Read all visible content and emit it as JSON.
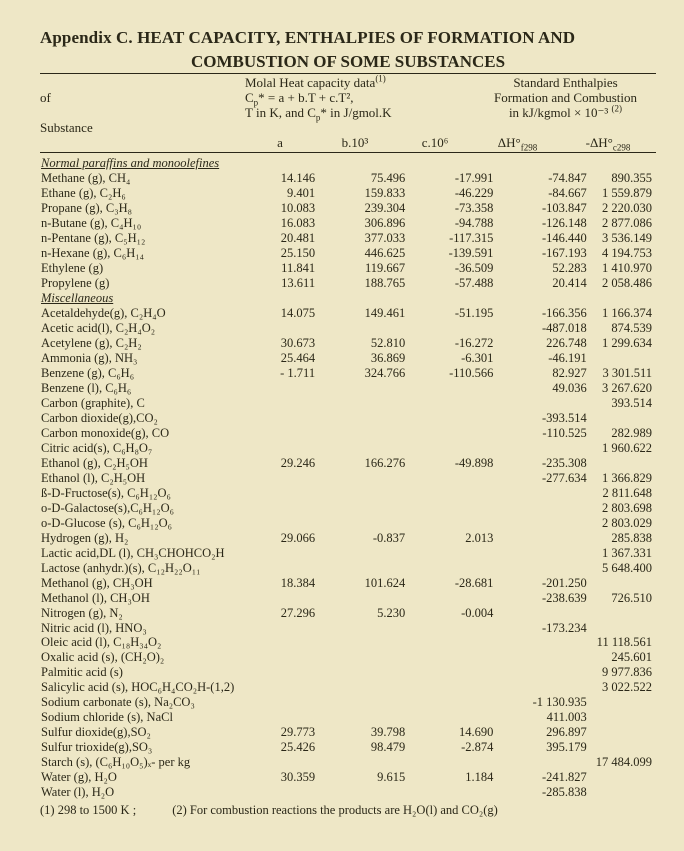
{
  "title_line1": "Appendix C. HEAT CAPACITY, ENTHALPIES OF FORMATION AND",
  "title_line2": "COMBUSTION OF SOME SUBSTANCES",
  "hdr_of": "of",
  "hdr_substance": "Substance",
  "hdr_molal": "Molal Heat capacity data",
  "hdr_sup1": "(1)",
  "hdr_formula_l1": "C",
  "hdr_formula_l1_rest": " = a + b.T + c.T²,",
  "hdr_formula_l2": "T in K, and C",
  "hdr_formula_l2_rest": " in J/gmol.K",
  "hdr_std": "Standard Enthalpies",
  "hdr_std2": "Formation and Combustion",
  "hdr_std3": "in kJ/kgmol × 10⁻³ ",
  "hdr_sup2": "(2)",
  "col_a": "a",
  "col_b": "b.10³",
  "col_c": "c.10⁶",
  "col_h1": "ΔH°",
  "col_h1_sub": "f298",
  "col_h2": "-ΔH°",
  "col_h2_sub": "c298",
  "sections": {
    "s1": "Normal paraffins and monoolefines",
    "s2": "Miscellaneous"
  },
  "rows": [
    {
      "s": "Methane (g), CH₄",
      "a": "14.146",
      "b": "75.496",
      "c": "-17.991",
      "h1": "-74.847",
      "h2": "890.355"
    },
    {
      "s": "Ethane (g), C₂H₆",
      "a": "9.401",
      "b": "159.833",
      "c": "-46.229",
      "h1": "-84.667",
      "h2": "1 559.879"
    },
    {
      "s": "Propane (g), C₃H₈",
      "a": "10.083",
      "b": "239.304",
      "c": "-73.358",
      "h1": "-103.847",
      "h2": "2 220.030"
    },
    {
      "s": "n-Butane (g), C₄H₁₀",
      "a": "16.083",
      "b": "306.896",
      "c": "-94.788",
      "h1": "-126.148",
      "h2": "2 877.086"
    },
    {
      "s": "n-Pentane (g), C₅H₁₂",
      "a": "20.481",
      "b": "377.033",
      "c": "-117.315",
      "h1": "-146.440",
      "h2": "3 536.149"
    },
    {
      "s": "n-Hexane (g), C₆H₁₄",
      "a": "25.150",
      "b": "446.625",
      "c": "-139.591",
      "h1": "-167.193",
      "h2": "4 194.753"
    },
    {
      "s": "Ethylene (g)",
      "a": "11.841",
      "b": "119.667",
      "c": "-36.509",
      "h1": "52.283",
      "h2": "1 410.970"
    },
    {
      "s": "Propylene (g)",
      "a": "13.611",
      "b": "188.765",
      "c": "-57.488",
      "h1": "20.414",
      "h2": "2 058.486"
    }
  ],
  "rows2": [
    {
      "s": "Acetaldehyde(g), C₂H₄O",
      "a": "14.075",
      "b": "149.461",
      "c": "-51.195",
      "h1": "-166.356",
      "h2": "1 166.374"
    },
    {
      "s": "Acetic acid(l), C₂H₄O₂",
      "a": "",
      "b": "",
      "c": "",
      "h1": "-487.018",
      "h2": "874.539"
    },
    {
      "s": "Acetylene (g), C₂H₂",
      "a": "30.673",
      "b": "52.810",
      "c": "-16.272",
      "h1": "226.748",
      "h2": "1 299.634"
    },
    {
      "s": "Ammonia (g), NH₃",
      "a": "25.464",
      "b": "36.869",
      "c": "-6.301",
      "h1": "-46.191",
      "h2": ""
    },
    {
      "s": "Benzene (g), C₆H₆",
      "a": "- 1.711",
      "b": "324.766",
      "c": "-110.566",
      "h1": "82.927",
      "h2": "3 301.511"
    },
    {
      "s": "Benzene (l), C₆H₆",
      "a": "",
      "b": "",
      "c": "",
      "h1": "49.036",
      "h2": "3 267.620"
    },
    {
      "s": "Carbon (graphite), C",
      "a": "",
      "b": "",
      "c": "",
      "h1": "",
      "h2": "393.514"
    },
    {
      "s": "Carbon dioxide(g),CO₂",
      "a": "",
      "b": "",
      "c": "",
      "h1": "-393.514",
      "h2": ""
    },
    {
      "s": "Carbon monoxide(g), CO",
      "a": "",
      "b": "",
      "c": "",
      "h1": "-110.525",
      "h2": "282.989"
    },
    {
      "s": "Citric acid(s), C₆H₈O₇",
      "a": "",
      "b": "",
      "c": "",
      "h1": "",
      "h2": "1 960.622"
    },
    {
      "s": "Ethanol (g), C₂H₅OH",
      "a": "29.246",
      "b": "166.276",
      "c": "-49.898",
      "h1": "-235.308",
      "h2": ""
    },
    {
      "s": "Ethanol (l), C₂H₅OH",
      "a": "",
      "b": "",
      "c": "",
      "h1": "-277.634",
      "h2": "1 366.829"
    },
    {
      "s": "ß-D-Fructose(s), C₆H₁₂O₆",
      "a": "",
      "b": "",
      "c": "",
      "h1": "",
      "h2": "2 811.648"
    },
    {
      "s": "o-D-Galactose(s),C₆H₁₂O₆",
      "a": "",
      "b": "",
      "c": "",
      "h1": "",
      "h2": "2 803.698"
    },
    {
      "s": "o-D-Glucose (s), C₆H₁₂O₆",
      "a": "",
      "b": "",
      "c": "",
      "h1": "",
      "h2": "2 803.029"
    },
    {
      "s": "Hydrogen (g), H₂",
      "a": "29.066",
      "b": "-0.837",
      "c": "2.013",
      "h1": "",
      "h2": "285.838"
    },
    {
      "s": "Lactic acid,DL (l), CH₃CHOHCO₂H",
      "a": "",
      "b": "",
      "c": "",
      "h1": "",
      "h2": "1 367.331"
    },
    {
      "s": "Lactose (anhydr.)(s), C₁₂H₂₂O₁₁",
      "a": "",
      "b": "",
      "c": "",
      "h1": "",
      "h2": "5 648.400"
    },
    {
      "s": "Methanol (g), CH₃OH",
      "a": "18.384",
      "b": "101.624",
      "c": "-28.681",
      "h1": "-201.250",
      "h2": ""
    },
    {
      "s": "Methanol (l), CH₃OH",
      "a": "",
      "b": "",
      "c": "",
      "h1": "-238.639",
      "h2": "726.510"
    },
    {
      "s": "Nitrogen (g), N₂",
      "a": "27.296",
      "b": "5.230",
      "c": "-0.004",
      "h1": "",
      "h2": ""
    },
    {
      "s": "Nitric acid (l), HNO₃",
      "a": "",
      "b": "",
      "c": "",
      "h1": "-173.234",
      "h2": ""
    },
    {
      "s": "Oleic acid (l), C₁₈H₃₄O₂",
      "a": "",
      "b": "",
      "c": "",
      "h1": "",
      "h2": "11 118.561"
    },
    {
      "s": "Oxalic acid (s), (CH₂O)₂",
      "a": "",
      "b": "",
      "c": "",
      "h1": "",
      "h2": "245.601"
    },
    {
      "s": "Palmitic acid (s)",
      "a": "",
      "b": "",
      "c": "",
      "h1": "",
      "h2": "9 977.836"
    },
    {
      "s": "Salicylic acid (s), HOC₆H₄CO₂H-(1,2)",
      "a": "",
      "b": "",
      "c": "",
      "h1": "",
      "h2": "3 022.522"
    },
    {
      "s": "Sodium carbonate (s), Na₂CO₃",
      "a": "",
      "b": "",
      "c": "",
      "h1": "-1 130.935",
      "h2": ""
    },
    {
      "s": "Sodium chloride (s), NaCl",
      "a": "",
      "b": "",
      "c": "",
      "h1": "411.003",
      "h2": ""
    },
    {
      "s": "Sulfur dioxide(g),SO₂",
      "a": "29.773",
      "b": "39.798",
      "c": "14.690",
      "h1": "296.897",
      "h2": ""
    },
    {
      "s": "Sulfur trioxide(g),SO₃",
      "a": "25.426",
      "b": "98.479",
      "c": "-2.874",
      "h1": "395.179",
      "h2": ""
    },
    {
      "s": "Starch (s), (C₆H₁₀O₅)ₓ- per kg",
      "a": "",
      "b": "",
      "c": "",
      "h1": "",
      "h2": "17 484.099"
    },
    {
      "s": "Water (g), H₂O",
      "a": "30.359",
      "b": "9.615",
      "c": "1.184",
      "h1": "-241.827",
      "h2": ""
    },
    {
      "s": "Water (l), H₂O",
      "a": "",
      "b": "",
      "c": "",
      "h1": "-285.838",
      "h2": ""
    }
  ],
  "foot1": "(1) 298 to 1500 K ;",
  "foot2": "(2) For combustion reactions the products are H₂O(l) and CO₂(g)"
}
